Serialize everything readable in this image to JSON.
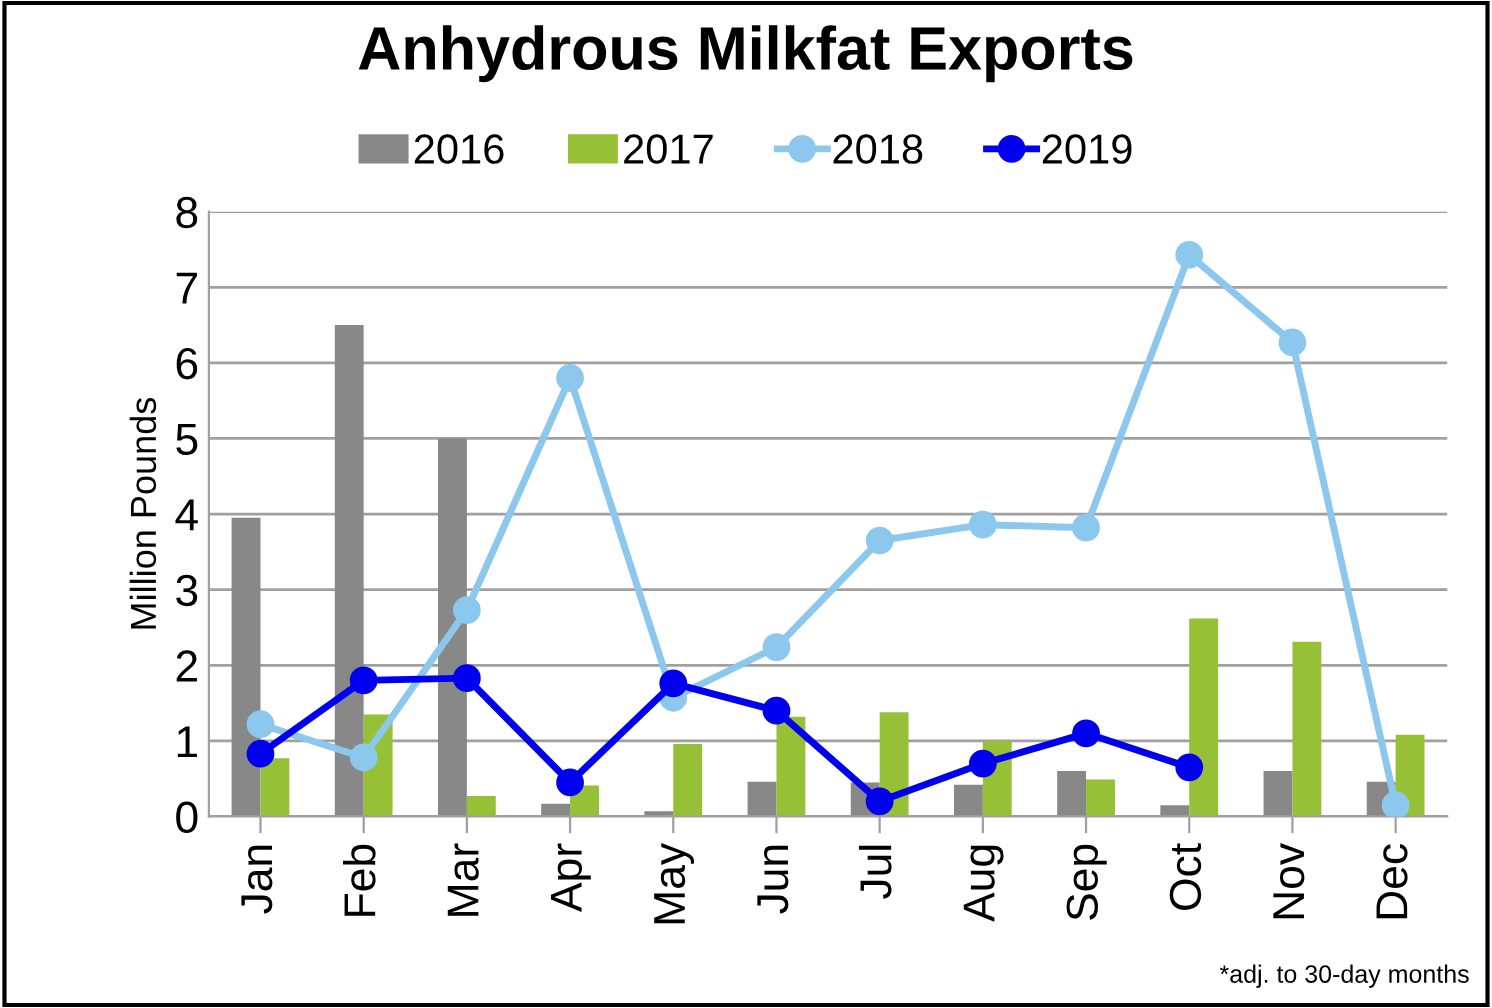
{
  "chart_data": {
    "type": "bar",
    "title": "Anhydrous Milkfat Exports",
    "ylabel": "Million Pounds",
    "categories": [
      "Jan",
      "Feb",
      "Mar",
      "Apr",
      "May",
      "Jun",
      "Jul",
      "Aug",
      "Sep",
      "Oct",
      "Nov",
      "Dec"
    ],
    "series": [
      {
        "name": "2016",
        "color": "#888888",
        "values": [
          3.95,
          6.5,
          5.0,
          0.17,
          0.07,
          0.46,
          0.45,
          0.42,
          0.6,
          0.15,
          0.6,
          0.46
        ]
      },
      {
        "name": "2017",
        "color": "#96c136",
        "values": [
          0.77,
          1.35,
          0.27,
          0.41,
          0.96,
          1.32,
          1.38,
          1.0,
          0.49,
          2.62,
          2.31,
          1.08
        ]
      },
      {
        "name": "2018",
        "type": "line",
        "color": "#8cc8ee",
        "values": [
          1.22,
          0.78,
          2.73,
          5.8,
          1.57,
          2.24,
          3.65,
          3.86,
          3.82,
          7.43,
          6.27,
          0.15
        ]
      },
      {
        "name": "2019",
        "type": "line",
        "color": "#0000ee",
        "values": [
          0.83,
          1.8,
          1.83,
          0.45,
          1.76,
          1.4,
          0.2,
          0.7,
          1.1,
          0.65,
          null,
          null
        ]
      }
    ],
    "ylim": [
      0,
      8
    ],
    "yticks": [
      0,
      1,
      2,
      3,
      4,
      5,
      6,
      7,
      8
    ],
    "grid": "y",
    "legend": "top",
    "marker": "circle",
    "annotations": [
      "*adj. to 30-day months"
    ]
  }
}
